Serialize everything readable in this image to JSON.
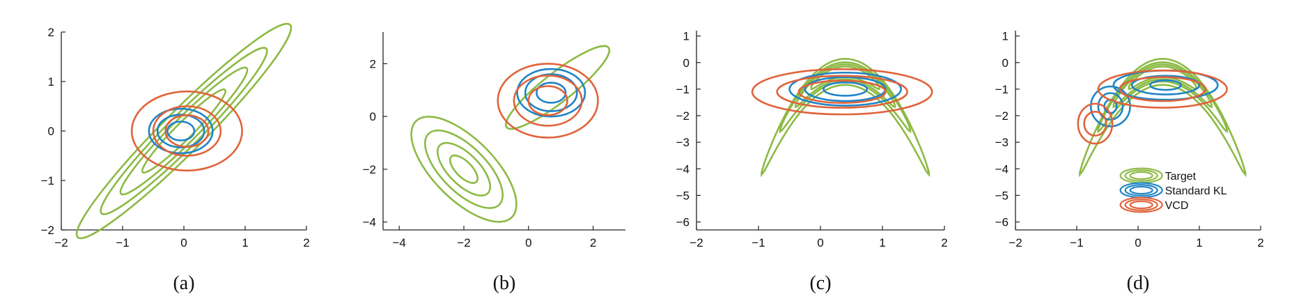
{
  "colors": {
    "target": "#8cba44",
    "standard_kl": "#1f84c6",
    "vcd": "#e0633a"
  },
  "chart_data": [
    {
      "type": "contour",
      "panel_label": "(a)",
      "xlim": [
        -2,
        2
      ],
      "ylim": [
        -2,
        2
      ],
      "xticks": [
        -2,
        -1,
        0,
        1,
        2
      ],
      "yticks": [
        -2,
        -1,
        0,
        1,
        2
      ],
      "series": [
        {
          "key": "target",
          "shape": "ellipse",
          "center": [
            0,
            0
          ],
          "rx": [
            2.45,
            1.9,
            1.45,
            0.95
          ],
          "ry": [
            0.42,
            0.33,
            0.25,
            0.17
          ],
          "angle_deg": 45
        },
        {
          "key": "standard_kl",
          "shape": "ellipse",
          "center": [
            -0.05,
            0
          ],
          "rx": [
            0.52,
            0.38,
            0.22
          ],
          "ry": [
            0.45,
            0.33,
            0.19
          ],
          "angle_deg": 0
        },
        {
          "key": "vcd",
          "shape": "ellipse",
          "center": [
            0.05,
            0
          ],
          "rx": [
            0.9,
            0.55,
            0.35
          ],
          "ry": [
            0.8,
            0.5,
            0.32
          ],
          "angle_deg": 0
        }
      ]
    },
    {
      "type": "contour",
      "panel_label": "(b)",
      "xlim": [
        -4.5,
        3
      ],
      "ylim": [
        -4.3,
        3.2
      ],
      "xticks": [
        -4,
        -2,
        0,
        2
      ],
      "yticks": [
        -4,
        -2,
        0,
        2
      ],
      "series": [
        {
          "key": "target",
          "shape": "ellipse",
          "center": [
            -2,
            -2
          ],
          "rx": [
            2.1,
            1.55,
            1.05,
            0.55
          ],
          "ry": [
            1.15,
            0.85,
            0.58,
            0.3
          ],
          "angle_deg": -45
        },
        {
          "key": "target",
          "shape": "ellipse",
          "center": [
            0.9,
            1.1
          ],
          "rx": [
            2.0
          ],
          "ry": [
            0.55
          ],
          "angle_deg": 38
        },
        {
          "key": "standard_kl",
          "shape": "ellipse",
          "center": [
            0.7,
            0.9
          ],
          "rx": [
            1.05,
            0.8,
            0.45
          ],
          "ry": [
            0.9,
            0.7,
            0.38
          ],
          "angle_deg": 0
        },
        {
          "key": "vcd",
          "shape": "ellipse",
          "center": [
            0.6,
            0.6
          ],
          "rx": [
            1.55,
            1.05,
            0.6
          ],
          "ry": [
            1.4,
            0.95,
            0.55
          ],
          "angle_deg": 0
        }
      ]
    },
    {
      "type": "contour",
      "panel_label": "(c)",
      "xlim": [
        -2,
        2
      ],
      "ylim": [
        -6.3,
        1.2
      ],
      "xticks": [
        -2,
        -1,
        0,
        1,
        2
      ],
      "yticks": [
        -6,
        -5,
        -4,
        -3,
        -2,
        -1,
        0,
        1
      ],
      "series": [
        {
          "key": "target",
          "shape": "banana",
          "center": [
            0.4,
            0
          ],
          "a": [
            1.35,
            1.05,
            0.8,
            0.55
          ],
          "curvature": [
            2.1,
            2.0,
            2.0,
            2.0
          ],
          "thickness": [
            0.45,
            0.32,
            0.24,
            0.16
          ]
        },
        {
          "key": "standard_kl",
          "shape": "ellipse",
          "center": [
            0.4,
            -1.0
          ],
          "rx": [
            0.9,
            0.65,
            0.35
          ],
          "ry": [
            0.62,
            0.45,
            0.25
          ],
          "angle_deg": 0
        },
        {
          "key": "vcd",
          "shape": "ellipse",
          "center": [
            0.35,
            -1.1
          ],
          "rx": [
            1.45,
            1.05,
            0.7
          ],
          "ry": [
            0.85,
            0.6,
            0.42
          ],
          "angle_deg": 0
        }
      ]
    },
    {
      "type": "contour",
      "panel_label": "(d)",
      "xlim": [
        -2,
        2
      ],
      "ylim": [
        -6.3,
        1.2
      ],
      "xticks": [
        -2,
        -1,
        0,
        1,
        2
      ],
      "yticks": [
        -6,
        -5,
        -4,
        -3,
        -2,
        -1,
        0,
        1
      ],
      "legend": {
        "placement": "bottom-right",
        "entries": [
          {
            "key": "target",
            "label": "Target"
          },
          {
            "key": "standard_kl",
            "label": "Standard KL"
          },
          {
            "key": "vcd",
            "label": "VCD"
          }
        ]
      },
      "series": [
        {
          "key": "target",
          "shape": "banana",
          "center": [
            0.4,
            0
          ],
          "a": [
            1.35,
            1.05,
            0.8,
            0.55
          ],
          "curvature": [
            2.1,
            2.0,
            2.0,
            2.0
          ],
          "thickness": [
            0.45,
            0.32,
            0.24,
            0.16
          ]
        },
        {
          "key": "standard_kl",
          "shape": "ellipse",
          "center": [
            -0.45,
            -1.65
          ],
          "rx": [
            0.32,
            0.2,
            0.1
          ],
          "ry": [
            0.75,
            0.5,
            0.25
          ],
          "angle_deg": 0
        },
        {
          "key": "standard_kl",
          "shape": "ellipse",
          "center": [
            0.45,
            -0.85
          ],
          "rx": [
            0.85,
            0.55,
            0.25
          ],
          "ry": [
            0.55,
            0.35,
            0.18
          ],
          "angle_deg": 0
        },
        {
          "key": "vcd",
          "shape": "ellipse",
          "center": [
            -0.7,
            -2.3
          ],
          "rx": [
            0.28,
            0.18
          ],
          "ry": [
            0.75,
            0.45
          ],
          "angle_deg": 0
        },
        {
          "key": "vcd",
          "shape": "ellipse",
          "center": [
            0.4,
            -1.0
          ],
          "rx": [
            1.05,
            0.7
          ],
          "ry": [
            0.7,
            0.45
          ],
          "angle_deg": 0
        }
      ]
    }
  ]
}
